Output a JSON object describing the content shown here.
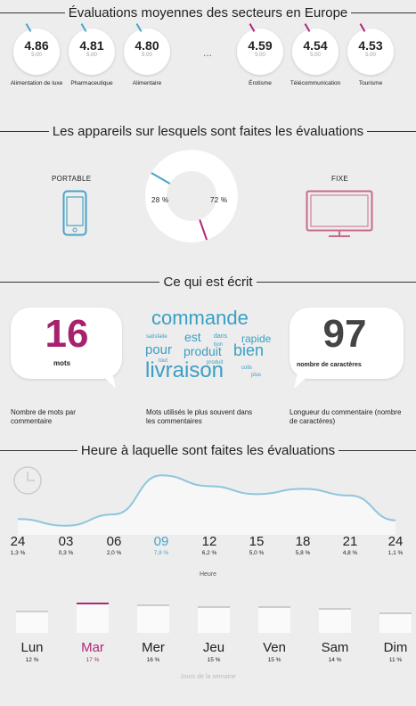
{
  "section1": {
    "title": "Évaluations moyennes des secteurs en Europe",
    "scale_max": "5.00",
    "ellipsis": "...",
    "scores": [
      {
        "value": "4.86",
        "label": "Alimentation de luxe"
      },
      {
        "value": "4.81",
        "label": "Pharmaceutique"
      },
      {
        "value": "4.80",
        "label": "Alimentaire"
      },
      {
        "value": "4.59",
        "label": "Érotisme"
      },
      {
        "value": "4.54",
        "label": "Télécommunication"
      },
      {
        "value": "4.53",
        "label": "Tourisme"
      }
    ]
  },
  "section2": {
    "title": "Les appareils sur lesquels sont faites les évaluations",
    "portable_label": "PORTABLE",
    "fixe_label": "FIXE",
    "portable_pct": "28 %",
    "fixe_pct": "72 %"
  },
  "section3": {
    "title": "Ce qui est écrit",
    "mots_value": "16",
    "mots_unit": "mots",
    "chars_value": "97",
    "chars_unit": "nombre de caractères",
    "caption_left": "Nombre de mots par commentaire",
    "caption_mid": "Mots utilisés le plus souvent dans les commentaires",
    "caption_right": "Longueur du commentaire (nombre de caractères)",
    "words": [
      "commande",
      "satisfaite",
      "est",
      "dans",
      "rapide",
      "pour",
      "bon",
      "produit",
      "bien",
      "tout",
      "produit",
      "livraison",
      "colis",
      "plus"
    ]
  },
  "section4": {
    "title": "Heure à laquelle sont faites les évaluations",
    "axis_label": "Heure",
    "days_caption": "Jours de la semaine"
  },
  "colors": {
    "accent": "#4aa3c8",
    "highlight": "#b0267a",
    "muted": "#c96a8d",
    "ring": "#f2f2f2"
  },
  "chart_data": [
    {
      "type": "area",
      "xlabel": "Heure",
      "categories": [
        "24",
        "03",
        "06",
        "09",
        "12",
        "15",
        "18",
        "21",
        "24"
      ],
      "labels": [
        "1,3 %",
        "0,3 %",
        "2,0 %",
        "7,8 %",
        "6,2 %",
        "5,0 %",
        "5,8 %",
        "4,8 %",
        "1,1 %"
      ],
      "values": [
        1.3,
        0.3,
        2.0,
        7.8,
        6.2,
        5.0,
        5.8,
        4.8,
        1.1
      ],
      "highlight_index": 3
    },
    {
      "type": "bar",
      "xlabel": "Jours de la semaine",
      "categories": [
        "Lun",
        "Mar",
        "Mer",
        "Jeu",
        "Ven",
        "Sam",
        "Dim"
      ],
      "labels": [
        "12 %",
        "17 %",
        "16 %",
        "15 %",
        "15 %",
        "14 %",
        "11 %"
      ],
      "values": [
        12,
        17,
        16,
        15,
        15,
        14,
        11
      ],
      "highlight_index": 1
    },
    {
      "type": "pie",
      "categories": [
        "PORTABLE",
        "FIXE"
      ],
      "values": [
        28,
        72
      ]
    }
  ]
}
